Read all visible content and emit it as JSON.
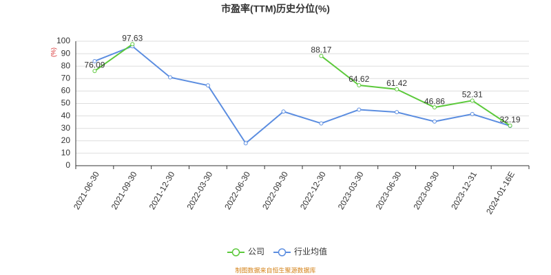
{
  "chart_data": {
    "type": "line",
    "title": "市盈率(TTM)历史分位(%)",
    "y_unit": "(%)",
    "source": "制图数据来自恒生聚源数据库",
    "categories": [
      "2021-06-30",
      "2021-09-30",
      "2021-12-30",
      "2022-03-30",
      "2022-06-30",
      "2022-09-30",
      "2022-12-30",
      "2023-03-30",
      "2023-06-30",
      "2023-09-30",
      "2023-12-31",
      "2024-01-16E"
    ],
    "series": [
      {
        "name": "公司",
        "color": "#5cc93b",
        "values": [
          76.09,
          97.63,
          null,
          null,
          null,
          null,
          88.17,
          64.62,
          61.42,
          46.86,
          52.31,
          32.19
        ],
        "labels": true
      },
      {
        "name": "行业均值",
        "color": "#5b8de0",
        "values": [
          84,
          96,
          71,
          64.5,
          18,
          43.5,
          34,
          45,
          43,
          35.5,
          41.5,
          32
        ],
        "labels": false
      }
    ],
    "ylim": [
      0,
      100
    ],
    "yticks": [
      0,
      10,
      20,
      30,
      40,
      50,
      60,
      70,
      80,
      90,
      100
    ],
    "grid": true
  }
}
